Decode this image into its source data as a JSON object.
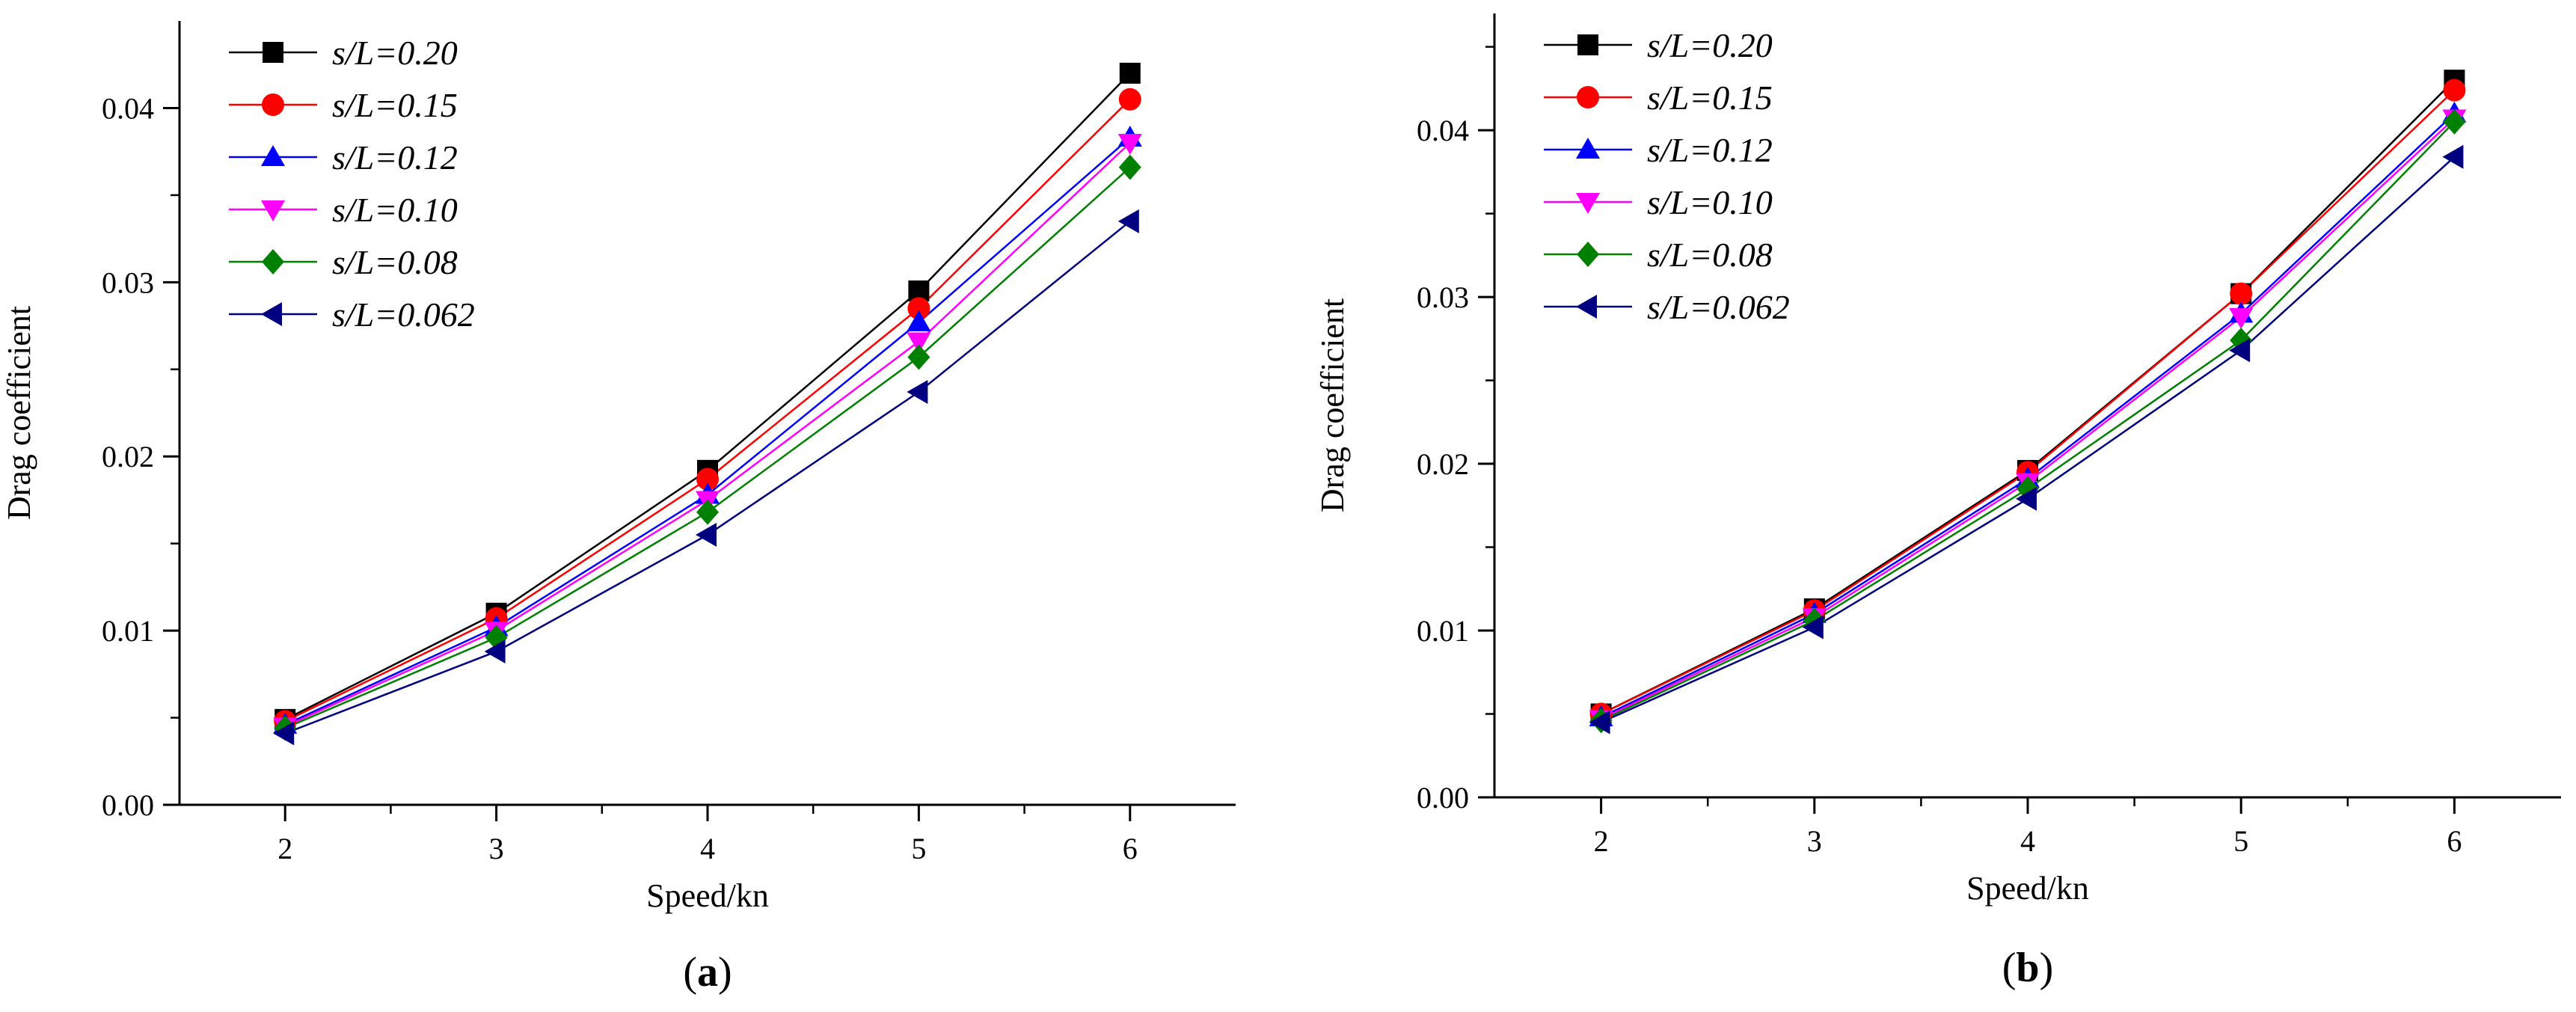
{
  "chart_data": [
    {
      "type": "line",
      "panel_label": "a",
      "xlabel": "Speed/kn",
      "ylabel": "Drag coefficient",
      "x": [
        2,
        3,
        4,
        5,
        6
      ],
      "xlim": [
        1.5,
        6.5
      ],
      "ylim": [
        0,
        0.045
      ],
      "xticks": [
        "2",
        "3",
        "4",
        "5",
        "6"
      ],
      "yticks": [
        "0.00",
        "0.01",
        "0.02",
        "0.03",
        "0.04"
      ],
      "legend_position": "top-left",
      "series": [
        {
          "name": "s/L=0.20",
          "color": "#000000",
          "marker": "square",
          "values": [
            0.0049,
            0.011,
            0.0192,
            0.0295,
            0.042
          ]
        },
        {
          "name": "s/L=0.15",
          "color": "#ff0000",
          "marker": "circle",
          "values": [
            0.0048,
            0.0107,
            0.0187,
            0.0285,
            0.0405
          ]
        },
        {
          "name": "s/L=0.12",
          "color": "#0000ff",
          "marker": "triangle-up",
          "values": [
            0.0046,
            0.0102,
            0.0178,
            0.0277,
            0.0383
          ]
        },
        {
          "name": "s/L=0.10",
          "color": "#ff00ff",
          "marker": "triangle-down",
          "values": [
            0.0045,
            0.01,
            0.0175,
            0.0266,
            0.038
          ]
        },
        {
          "name": "s/L=0.08",
          "color": "#008000",
          "marker": "diamond",
          "values": [
            0.0044,
            0.0096,
            0.0168,
            0.0257,
            0.0366
          ]
        },
        {
          "name": "s/L=0.062",
          "color": "#000080",
          "marker": "triangle-left",
          "values": [
            0.0041,
            0.0088,
            0.0155,
            0.0237,
            0.0335
          ]
        }
      ]
    },
    {
      "type": "line",
      "panel_label": "b",
      "xlabel": "Speed/kn",
      "ylabel": "Drag coefficient",
      "x": [
        2,
        3,
        4,
        5,
        6
      ],
      "xlim": [
        1.5,
        6.5
      ],
      "ylim": [
        0,
        0.047
      ],
      "xticks": [
        "2",
        "3",
        "4",
        "5",
        "6"
      ],
      "yticks": [
        "0.00",
        "0.01",
        "0.02",
        "0.03",
        "0.04"
      ],
      "legend_position": "top-left",
      "series": [
        {
          "name": "s/L=0.20",
          "color": "#000000",
          "marker": "square",
          "values": [
            0.005,
            0.0113,
            0.0196,
            0.0302,
            0.043
          ]
        },
        {
          "name": "s/L=0.15",
          "color": "#ff0000",
          "marker": "circle",
          "values": [
            0.005,
            0.0112,
            0.0195,
            0.0302,
            0.0424
          ]
        },
        {
          "name": "s/L=0.12",
          "color": "#0000ff",
          "marker": "triangle-up",
          "values": [
            0.0048,
            0.011,
            0.0191,
            0.029,
            0.041
          ]
        },
        {
          "name": "s/L=0.10",
          "color": "#ff00ff",
          "marker": "triangle-down",
          "values": [
            0.0047,
            0.0108,
            0.0189,
            0.0288,
            0.0407
          ]
        },
        {
          "name": "s/L=0.08",
          "color": "#008000",
          "marker": "diamond",
          "values": [
            0.0046,
            0.0106,
            0.0185,
            0.0274,
            0.0405
          ]
        },
        {
          "name": "s/L=0.062",
          "color": "#000080",
          "marker": "triangle-left",
          "values": [
            0.0045,
            0.0102,
            0.0179,
            0.0268,
            0.0384
          ]
        }
      ]
    }
  ]
}
